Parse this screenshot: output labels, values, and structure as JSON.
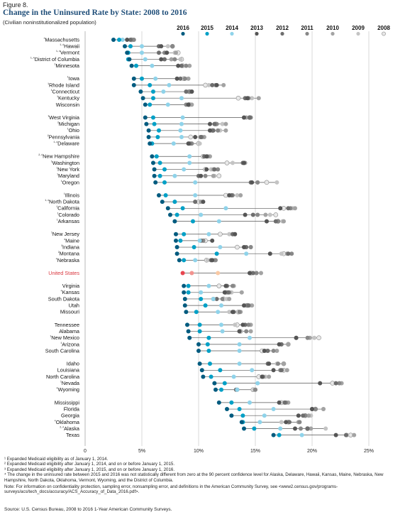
{
  "header": {
    "figure_label": "Figure 8.",
    "title": "Change in the Uninsured Rate by State: 2008 to 2016",
    "subtitle": "(Civilian noninstitutionalized population)"
  },
  "chart_data": {
    "type": "scatter",
    "title": "Change in the Uninsured Rate by State: 2008 to 2016",
    "subtitle": "(Civilian noninstitutionalized population)",
    "xlim": [
      0,
      25
    ],
    "x_ticks": [
      0,
      5,
      10,
      15,
      20,
      25
    ],
    "x_tick_labels": [
      "0",
      "5%",
      "10%",
      "15%",
      "20%",
      "25%"
    ],
    "grid": true,
    "legend_position": "top",
    "years": [
      "2016",
      "2015",
      "2014",
      "2013",
      "2012",
      "2011",
      "2010",
      "2009",
      "2008"
    ],
    "year_colors": {
      "2016": "#005b7f",
      "2015": "#00a0c6",
      "2014": "#8fd3ea",
      "2013": "#555555",
      "2012": "#6e6e6e",
      "2011": "#888888",
      "2010": "#a3a3a3",
      "2009": "#c4c4c4",
      "2008": "#e8e8e8"
    },
    "us_colors": {
      "2016": "#e8454f",
      "2015": "#f2938f",
      "2014": "#f9c9a4",
      "2013": "#555555",
      "2012": "#6e6e6e",
      "2011": "#888888",
      "2010": "#a3a3a3",
      "2009": "#c4c4c4",
      "2008": "#e8e8e8"
    },
    "groups": [
      [
        {
          "name": "Massachusetts",
          "marker": "¹",
          "values": [
            2.5,
            3.0,
            3.3,
            3.7,
            4.0,
            4.3,
            4.2,
            4.0,
            4.1
          ]
        },
        {
          "name": "Hawaii",
          "marker": "¹·⁴",
          "values": [
            3.5,
            4.0,
            5.0,
            6.7,
            6.5,
            7.7,
            7.7,
            7.3,
            7.7
          ]
        },
        {
          "name": "Vermont",
          "marker": "¹·⁴",
          "values": [
            3.7,
            3.8,
            5.0,
            7.2,
            6.5,
            7.0,
            8.0,
            7.9,
            8.2
          ]
        },
        {
          "name": "District of Columbia",
          "marker": "¹·⁴",
          "values": [
            3.9,
            3.8,
            5.3,
            6.7,
            7.0,
            7.9,
            7.6,
            8.4,
            8.5
          ]
        },
        {
          "name": "Minnesota",
          "marker": "¹",
          "values": [
            4.1,
            4.5,
            5.9,
            8.2,
            8.5,
            8.9,
            9.2,
            8.6,
            8.6
          ]
        }
      ],
      [
        {
          "name": "Iowa",
          "marker": "¹",
          "values": [
            4.3,
            5.0,
            6.2,
            8.1,
            8.4,
            8.8,
            9.1,
            8.8,
            8.7
          ]
        },
        {
          "name": "Rhode Island",
          "marker": "¹",
          "values": [
            4.3,
            5.7,
            7.4,
            11.6,
            11.2,
            11.5,
            12.2,
            10.9,
            10.6
          ]
        },
        {
          "name": "Connecticut",
          "marker": "¹",
          "values": [
            4.9,
            6.0,
            6.9,
            9.4,
            8.9,
            9.2,
            9.1,
            9.4,
            9.2
          ]
        },
        {
          "name": "Kentucky",
          "marker": "¹",
          "values": [
            5.1,
            6.0,
            8.5,
            14.3,
            14.1,
            14.4,
            15.3,
            14.7,
            13.5
          ]
        },
        {
          "name": "Wisconsin",
          "marker": "",
          "values": [
            5.3,
            5.7,
            7.3,
            9.1,
            9.1,
            8.9,
            9.4,
            9.2,
            9.2
          ]
        }
      ],
      [
        {
          "name": "West Virginia",
          "marker": "¹",
          "values": [
            5.3,
            6.0,
            8.6,
            14.0,
            14.5,
            14.6,
            14.2,
            14.0,
            14.5
          ]
        },
        {
          "name": "Michigan",
          "marker": "²",
          "values": [
            5.4,
            6.1,
            8.5,
            11.0,
            11.4,
            11.6,
            12.4,
            12.1,
            11.5
          ]
        },
        {
          "name": "Ohio",
          "marker": "¹",
          "values": [
            5.6,
            6.5,
            8.4,
            11.0,
            11.3,
            11.7,
            12.4,
            11.9,
            11.2
          ]
        },
        {
          "name": "Pennsylvania",
          "marker": "²",
          "values": [
            5.6,
            6.4,
            8.5,
            9.7,
            10.2,
            10.3,
            10.5,
            10.1,
            9.3
          ]
        },
        {
          "name": "Delaware",
          "marker": "¹·⁴",
          "values": [
            5.7,
            5.9,
            7.8,
            9.1,
            9.2,
            9.4,
            9.3,
            10.1,
            10.0
          ]
        }
      ],
      [
        {
          "name": "New Hampshire",
          "marker": "²·⁴",
          "values": [
            5.9,
            6.3,
            9.2,
            10.7,
            10.5,
            10.8,
            11.0,
            10.5,
            10.4
          ]
        },
        {
          "name": "Washington",
          "marker": "¹",
          "values": [
            6.0,
            6.6,
            9.2,
            14.0,
            13.9,
            14.0,
            14.1,
            13.0,
            12.5
          ]
        },
        {
          "name": "New York",
          "marker": "¹",
          "values": [
            6.1,
            7.0,
            8.7,
            10.7,
            11.4,
            11.7,
            11.3,
            11.1,
            10.6
          ]
        },
        {
          "name": "Maryland",
          "marker": "¹",
          "values": [
            6.1,
            6.6,
            7.9,
            10.2,
            10.0,
            10.6,
            11.3,
            11.4,
            11.8
          ]
        },
        {
          "name": "Oregon",
          "marker": "¹",
          "values": [
            6.2,
            7.0,
            9.7,
            14.7,
            14.6,
            15.2,
            15.2,
            16.9,
            16.0
          ]
        }
      ],
      [
        {
          "name": "Illinois",
          "marker": "¹",
          "values": [
            6.5,
            7.1,
            9.7,
            12.7,
            12.9,
            13.0,
            13.7,
            13.4,
            12.4
          ]
        },
        {
          "name": "North Dakota",
          "marker": "¹·⁴",
          "values": [
            6.8,
            7.9,
            7.9,
            10.4,
            9.7,
            9.7,
            10.2,
            10.2,
            10.0
          ]
        },
        {
          "name": "California",
          "marker": "¹",
          "values": [
            7.3,
            8.6,
            12.4,
            17.2,
            17.9,
            18.1,
            18.5,
            18.3,
            17.5
          ]
        },
        {
          "name": "Colorado",
          "marker": "¹",
          "values": [
            7.5,
            8.1,
            10.2,
            14.1,
            14.8,
            15.2,
            15.9,
            16.3,
            16.8
          ]
        },
        {
          "name": "Arkansas",
          "marker": "¹",
          "values": [
            7.9,
            9.5,
            11.8,
            16.0,
            16.8,
            17.0,
            17.5,
            17.4,
            17.0
          ]
        }
      ],
      [
        {
          "name": "New Jersey",
          "marker": "¹",
          "values": [
            8.0,
            8.7,
            10.9,
            13.2,
            13.0,
            13.2,
            13.0,
            12.7,
            11.9
          ]
        },
        {
          "name": "Maine",
          "marker": "⁴",
          "values": [
            8.0,
            8.4,
            10.1,
            11.2,
            10.2,
            10.4,
            10.4,
            10.2,
            10.6
          ]
        },
        {
          "name": "Indiana",
          "marker": "³",
          "values": [
            8.1,
            9.6,
            11.9,
            14.0,
            14.2,
            14.6,
            14.6,
            14.1,
            13.4
          ]
        },
        {
          "name": "Montana",
          "marker": "²",
          "values": [
            8.1,
            11.6,
            14.2,
            16.3,
            17.9,
            18.2,
            17.8,
            17.3,
            17.5
          ]
        },
        {
          "name": "Nebraska",
          "marker": "⁴",
          "values": [
            8.3,
            8.7,
            9.7,
            11.2,
            11.1,
            11.5,
            11.4,
            10.8,
            10.7
          ]
        }
      ],
      [
        {
          "name": "United States",
          "marker": "",
          "us": true,
          "values": [
            8.6,
            9.4,
            11.7,
            14.5,
            14.8,
            15.1,
            15.5,
            15.1,
            14.6
          ]
        }
      ],
      [
        {
          "name": "Virginia",
          "marker": "",
          "values": [
            8.7,
            9.1,
            10.9,
            12.4,
            12.5,
            13.0,
            13.1,
            12.4,
            11.8
          ]
        },
        {
          "name": "Kansas",
          "marker": "⁴",
          "values": [
            8.7,
            9.1,
            10.2,
            12.3,
            12.6,
            12.7,
            13.8,
            12.9,
            12.4
          ]
        },
        {
          "name": "South Dakota",
          "marker": "",
          "values": [
            8.8,
            10.2,
            11.3,
            11.3,
            11.6,
            12.1,
            12.7,
            12.5,
            12.2
          ]
        },
        {
          "name": "Utah",
          "marker": "",
          "values": [
            8.8,
            10.6,
            12.0,
            14.0,
            14.4,
            14.2,
            14.7,
            14.5,
            14.3
          ]
        },
        {
          "name": "Missouri",
          "marker": "",
          "values": [
            8.9,
            9.8,
            11.7,
            13.0,
            13.1,
            13.6,
            13.7,
            12.7,
            13.5
          ]
        }
      ],
      [
        {
          "name": "Tennessee",
          "marker": "",
          "values": [
            9.0,
            10.1,
            12.0,
            13.9,
            14.1,
            14.4,
            14.6,
            13.2,
            13.4
          ]
        },
        {
          "name": "Alabama",
          "marker": "",
          "values": [
            9.1,
            10.1,
            12.1,
            13.6,
            13.6,
            14.2,
            14.6,
            13.7,
            13.7
          ]
        },
        {
          "name": "New Mexico",
          "marker": "¹",
          "values": [
            9.2,
            10.9,
            14.5,
            18.6,
            18.6,
            19.6,
            19.8,
            20.2,
            20.6
          ]
        },
        {
          "name": "Arizona",
          "marker": "¹",
          "values": [
            10.0,
            10.8,
            13.6,
            17.1,
            17.3,
            17.3,
            17.9,
            17.9,
            17.9
          ]
        },
        {
          "name": "South Carolina",
          "marker": "",
          "values": [
            10.0,
            10.9,
            13.6,
            15.8,
            16.1,
            16.6,
            16.9,
            16.0,
            15.6
          ]
        }
      ],
      [
        {
          "name": "Idaho",
          "marker": "",
          "values": [
            10.1,
            11.0,
            13.6,
            16.2,
            16.1,
            17.0,
            17.5,
            16.9,
            17.5
          ]
        },
        {
          "name": "Louisiana",
          "marker": "",
          "values": [
            10.3,
            11.9,
            14.7,
            16.6,
            17.3,
            17.2,
            17.8,
            17.4,
            17.5
          ]
        },
        {
          "name": "North Carolina",
          "marker": "",
          "values": [
            10.4,
            11.1,
            13.1,
            15.6,
            15.6,
            15.7,
            16.2,
            15.9,
            15.3
          ]
        },
        {
          "name": "Nevada",
          "marker": "¹",
          "values": [
            11.4,
            12.3,
            15.2,
            20.7,
            22.1,
            22.4,
            22.6,
            22.4,
            21.8
          ]
        },
        {
          "name": "Wyoming",
          "marker": "⁴",
          "values": [
            11.5,
            12.0,
            13.4,
            13.4,
            13.3,
            15.0,
            15.0,
            14.9,
            14.8
          ]
        }
      ],
      [
        {
          "name": "Mississippi",
          "marker": "",
          "values": [
            11.8,
            12.9,
            14.5,
            17.1,
            17.6,
            17.7,
            17.9,
            17.5,
            17.3
          ]
        },
        {
          "name": "Florida",
          "marker": "",
          "values": [
            12.5,
            13.6,
            16.6,
            20.0,
            20.0,
            20.3,
            21.0,
            21.0,
            20.3
          ]
        },
        {
          "name": "Georgia",
          "marker": "",
          "values": [
            12.9,
            13.9,
            15.8,
            18.8,
            19.2,
            19.4,
            19.7,
            19.9,
            19.4
          ]
        },
        {
          "name": "Oklahoma",
          "marker": "⁴",
          "values": [
            13.8,
            13.9,
            15.4,
            17.7,
            18.0,
            18.9,
            18.8,
            17.3,
            17.9
          ]
        },
        {
          "name": "Alaska",
          "marker": "²·⁴",
          "values": [
            14.0,
            14.9,
            17.2,
            18.5,
            19.6,
            19.0,
            19.9,
            21.2,
            19.6
          ]
        },
        {
          "name": "Texas",
          "marker": "",
          "values": [
            16.6,
            17.1,
            19.1,
            22.1,
            23.0,
            23.0,
            23.7,
            23.1,
            23.4
          ]
        }
      ]
    ]
  },
  "footnotes": [
    "¹ Expanded Medicaid eligibility as of January 1, 2014.",
    "² Expanded Medicaid eligibility after January 1, 2014, and on or before January 1, 2015.",
    "³ Expanded Medicaid eligibility after January 1, 2015, and on or before January 1, 2016.",
    "⁴ The change in the uninsured rate between 2015 and 2016 was not statistically different from zero at the 90 percent confidence level for Alaska, Delaware, Hawaii, Kansas, Maine, Nebraska, New Hampshire, North Dakota, Oklahoma, Vermont, Wyoming, and the District of Columbia."
  ],
  "note": "Note: For information on confidentiality protection, sampling error, nonsampling error, and definitions in the American Community Survey, see <www2.census.gov/programs-surveys/acs/tech_docs/accuracy/ACS_Accuracy_of_Data_2016.pdf>.",
  "source": "Source: U.S. Census Bureau, 2008 to 2016 1-Year American Community Surveys."
}
